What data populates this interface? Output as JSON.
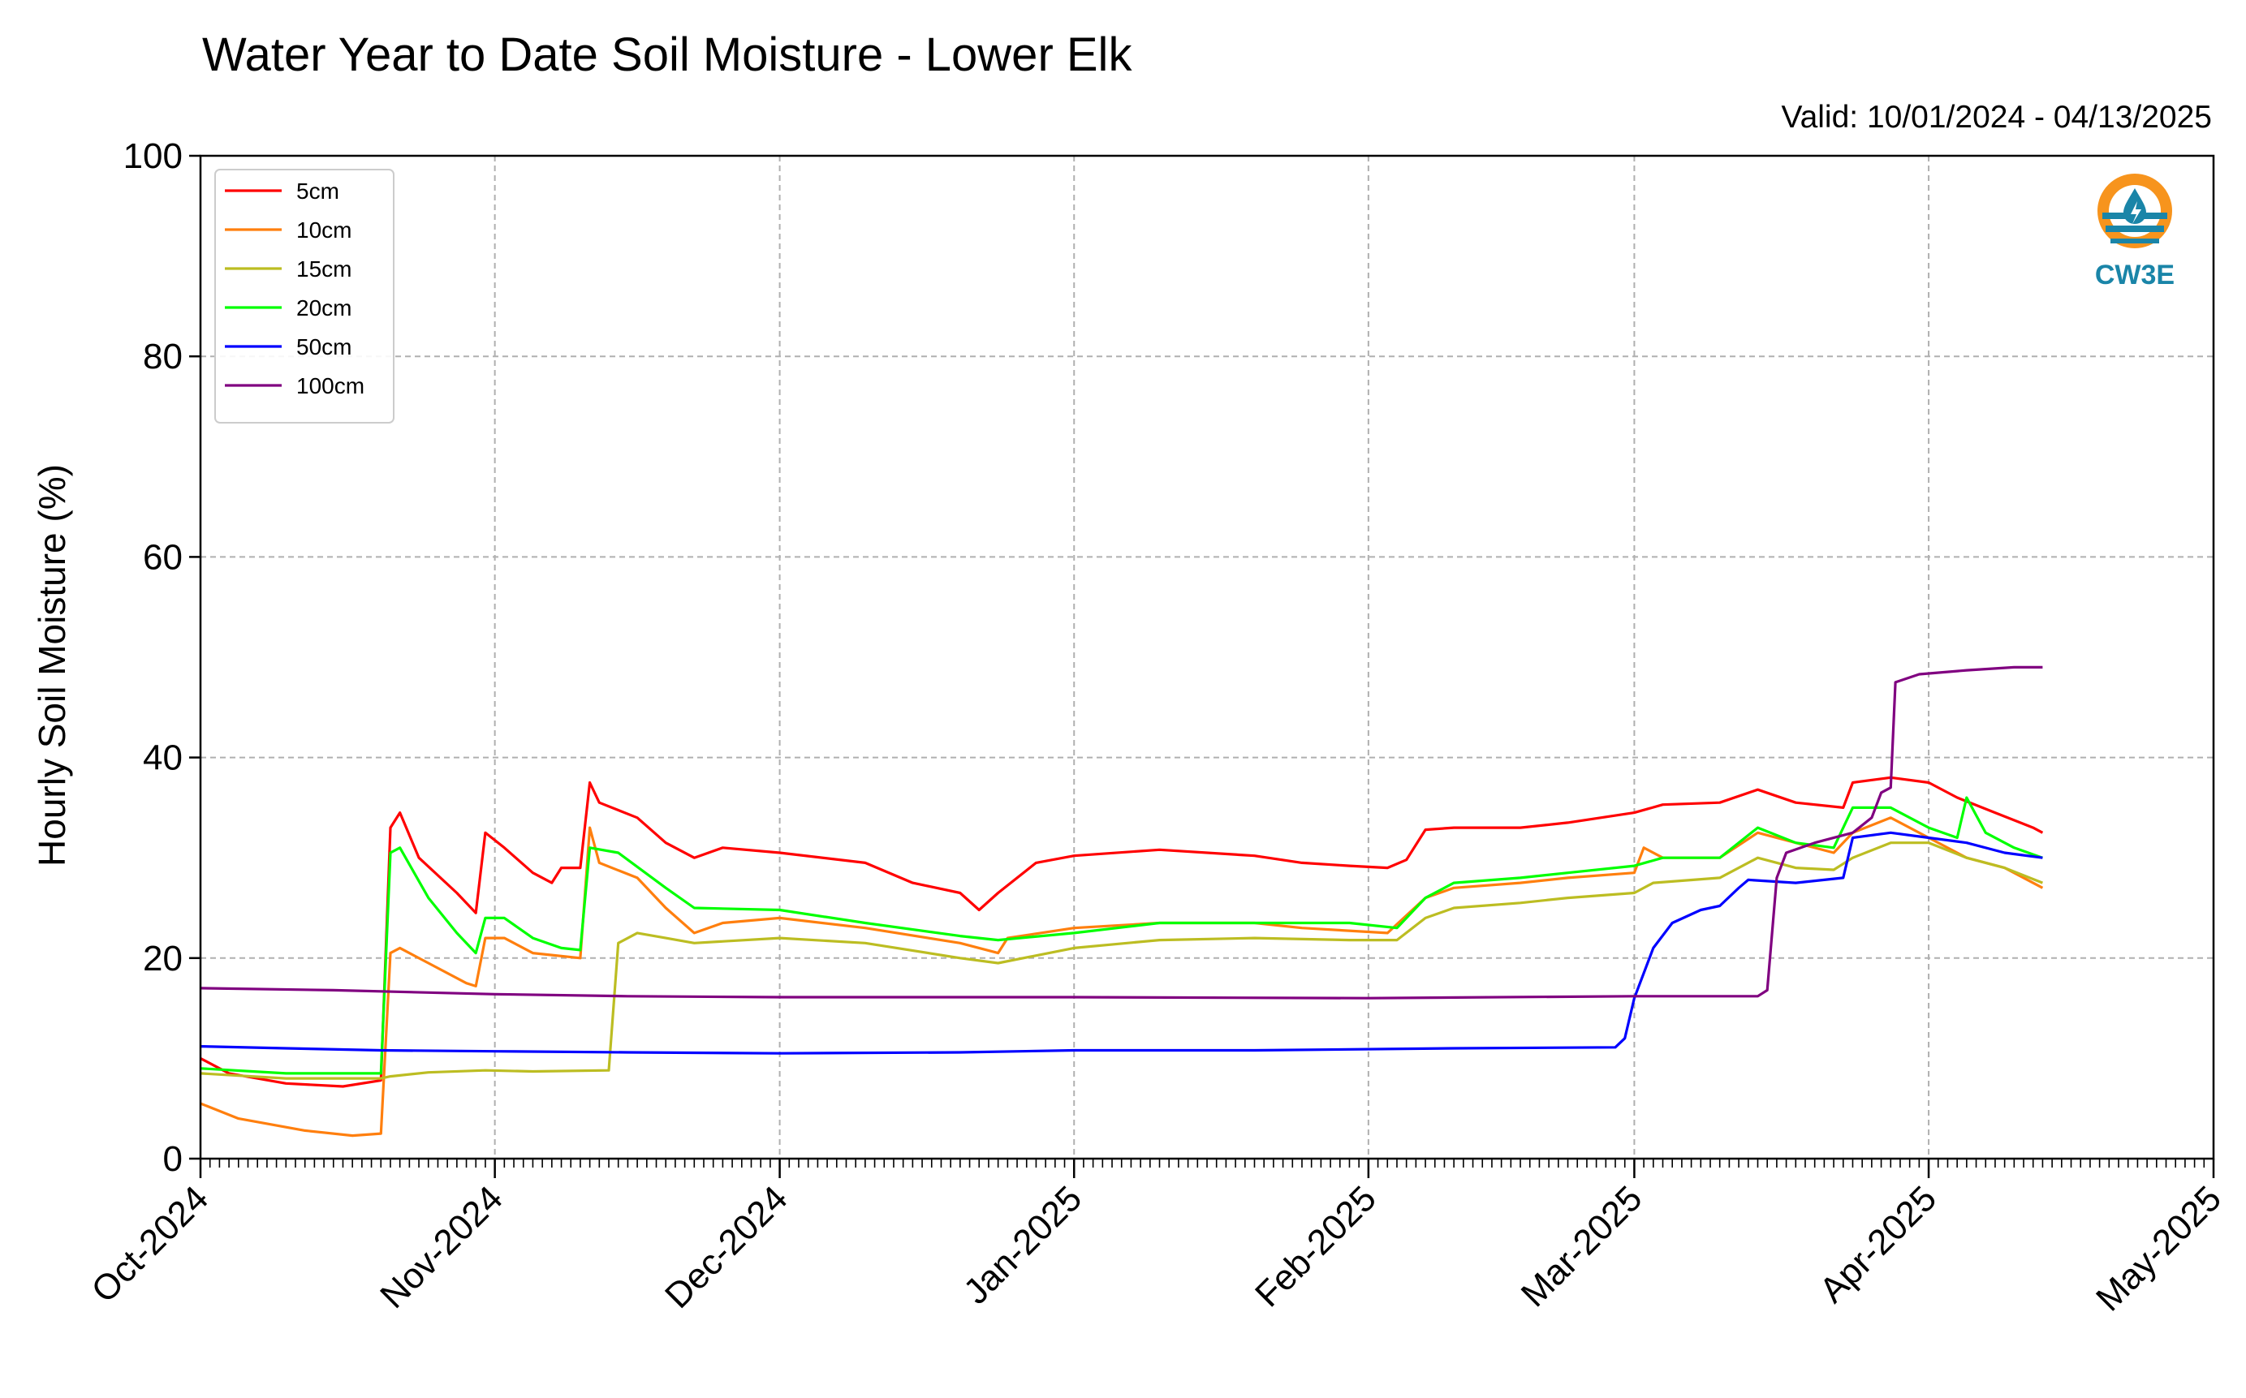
{
  "chart_data": {
    "type": "line",
    "title": "Water Year to Date Soil Moisture - Lower Elk",
    "subtitle": "Valid: 10/01/2024 - 04/13/2025",
    "xlabel": "",
    "ylabel": "Hourly Soil Moisture (%)",
    "ylim": [
      0,
      100
    ],
    "yticks": [
      "0",
      "20",
      "40",
      "60",
      "80",
      "100"
    ],
    "xlim": [
      "2024-10-01",
      "2025-05-01"
    ],
    "xticks": [
      {
        "date": "2024-10-01",
        "label": "Oct-2024"
      },
      {
        "date": "2024-11-01",
        "label": "Nov-2024"
      },
      {
        "date": "2024-12-01",
        "label": "Dec-2024"
      },
      {
        "date": "2025-01-01",
        "label": "Jan-2025"
      },
      {
        "date": "2025-02-01",
        "label": "Feb-2025"
      },
      {
        "date": "2025-03-01",
        "label": "Mar-2025"
      },
      {
        "date": "2025-04-01",
        "label": "Apr-2025"
      },
      {
        "date": "2025-05-01",
        "label": "May-2025"
      }
    ],
    "grid": true,
    "legend_position": "top-left",
    "logo_text": "CW3E",
    "series": [
      {
        "name": "5cm",
        "color": "#ff0000",
        "points": [
          [
            "2024-10-01",
            10.0
          ],
          [
            "2024-10-04",
            8.5
          ],
          [
            "2024-10-10",
            7.5
          ],
          [
            "2024-10-16",
            7.2
          ],
          [
            "2024-10-20",
            7.8
          ],
          [
            "2024-10-21",
            33.0
          ],
          [
            "2024-10-22",
            34.5
          ],
          [
            "2024-10-24",
            30.0
          ],
          [
            "2024-10-28",
            26.5
          ],
          [
            "2024-10-30",
            24.5
          ],
          [
            "2024-10-31",
            32.5
          ],
          [
            "2024-11-02",
            31.0
          ],
          [
            "2024-11-05",
            28.5
          ],
          [
            "2024-11-07",
            27.5
          ],
          [
            "2024-11-08",
            29.0
          ],
          [
            "2024-11-10",
            29.0
          ],
          [
            "2024-11-11",
            37.5
          ],
          [
            "2024-11-12",
            35.5
          ],
          [
            "2024-11-16",
            34.0
          ],
          [
            "2024-11-19",
            31.5
          ],
          [
            "2024-11-22",
            30.0
          ],
          [
            "2024-11-25",
            31.0
          ],
          [
            "2024-12-01",
            30.5
          ],
          [
            "2024-12-10",
            29.5
          ],
          [
            "2024-12-15",
            27.5
          ],
          [
            "2024-12-20",
            26.5
          ],
          [
            "2024-12-22",
            24.8
          ],
          [
            "2024-12-24",
            26.5
          ],
          [
            "2024-12-28",
            29.5
          ],
          [
            "2025-01-01",
            30.2
          ],
          [
            "2025-01-10",
            30.8
          ],
          [
            "2025-01-20",
            30.2
          ],
          [
            "2025-01-25",
            29.5
          ],
          [
            "2025-01-30",
            29.2
          ],
          [
            "2025-02-03",
            29.0
          ],
          [
            "2025-02-05",
            29.8
          ],
          [
            "2025-02-07",
            32.8
          ],
          [
            "2025-02-10",
            33.0
          ],
          [
            "2025-02-17",
            33.0
          ],
          [
            "2025-02-22",
            33.5
          ],
          [
            "2025-03-01",
            34.5
          ],
          [
            "2025-03-04",
            35.3
          ],
          [
            "2025-03-10",
            35.5
          ],
          [
            "2025-03-14",
            36.8
          ],
          [
            "2025-03-18",
            35.5
          ],
          [
            "2025-03-23",
            35.0
          ],
          [
            "2025-03-24",
            37.5
          ],
          [
            "2025-03-28",
            38.0
          ],
          [
            "2025-04-01",
            37.5
          ],
          [
            "2025-04-04",
            36.0
          ],
          [
            "2025-04-08",
            34.5
          ],
          [
            "2025-04-12",
            33.0
          ],
          [
            "2025-04-13",
            32.5
          ]
        ]
      },
      {
        "name": "10cm",
        "color": "#ff7f0e",
        "points": [
          [
            "2024-10-01",
            5.5
          ],
          [
            "2024-10-05",
            4.0
          ],
          [
            "2024-10-12",
            2.8
          ],
          [
            "2024-10-17",
            2.3
          ],
          [
            "2024-10-20",
            2.5
          ],
          [
            "2024-10-21",
            20.5
          ],
          [
            "2024-10-22",
            21.0
          ],
          [
            "2024-10-25",
            19.5
          ],
          [
            "2024-10-29",
            17.5
          ],
          [
            "2024-10-30",
            17.2
          ],
          [
            "2024-10-31",
            22.0
          ],
          [
            "2024-11-02",
            22.0
          ],
          [
            "2024-11-05",
            20.5
          ],
          [
            "2024-11-10",
            20.0
          ],
          [
            "2024-11-11",
            33.0
          ],
          [
            "2024-11-12",
            29.5
          ],
          [
            "2024-11-16",
            28.0
          ],
          [
            "2024-11-19",
            25.0
          ],
          [
            "2024-11-22",
            22.5
          ],
          [
            "2024-11-25",
            23.5
          ],
          [
            "2024-12-01",
            24.0
          ],
          [
            "2024-12-10",
            23.0
          ],
          [
            "2024-12-20",
            21.5
          ],
          [
            "2024-12-24",
            20.5
          ],
          [
            "2024-12-25",
            22.0
          ],
          [
            "2025-01-01",
            23.0
          ],
          [
            "2025-01-10",
            23.5
          ],
          [
            "2025-01-20",
            23.5
          ],
          [
            "2025-01-25",
            23.0
          ],
          [
            "2025-02-03",
            22.5
          ],
          [
            "2025-02-07",
            26.0
          ],
          [
            "2025-02-10",
            27.0
          ],
          [
            "2025-02-17",
            27.5
          ],
          [
            "2025-02-22",
            28.0
          ],
          [
            "2025-03-01",
            28.5
          ],
          [
            "2025-03-02",
            31.0
          ],
          [
            "2025-03-04",
            30.0
          ],
          [
            "2025-03-10",
            30.0
          ],
          [
            "2025-03-14",
            32.5
          ],
          [
            "2025-03-18",
            31.5
          ],
          [
            "2025-03-22",
            30.5
          ],
          [
            "2025-03-24",
            32.5
          ],
          [
            "2025-03-28",
            34.0
          ],
          [
            "2025-04-01",
            32.0
          ],
          [
            "2025-04-05",
            30.0
          ],
          [
            "2025-04-09",
            29.0
          ],
          [
            "2025-04-13",
            27.0
          ]
        ]
      },
      {
        "name": "15cm",
        "color": "#bcbd22",
        "points": [
          [
            "2024-10-01",
            8.5
          ],
          [
            "2024-10-10",
            8.0
          ],
          [
            "2024-10-20",
            8.0
          ],
          [
            "2024-10-21",
            8.2
          ],
          [
            "2024-10-25",
            8.6
          ],
          [
            "2024-10-31",
            8.8
          ],
          [
            "2024-11-05",
            8.7
          ],
          [
            "2024-11-13",
            8.8
          ],
          [
            "2024-11-14",
            21.5
          ],
          [
            "2024-11-16",
            22.5
          ],
          [
            "2024-11-19",
            22.0
          ],
          [
            "2024-11-22",
            21.5
          ],
          [
            "2024-12-01",
            22.0
          ],
          [
            "2024-12-10",
            21.5
          ],
          [
            "2024-12-20",
            20.0
          ],
          [
            "2024-12-24",
            19.5
          ],
          [
            "2025-01-01",
            21.0
          ],
          [
            "2025-01-10",
            21.8
          ],
          [
            "2025-01-20",
            22.0
          ],
          [
            "2025-01-30",
            21.8
          ],
          [
            "2025-02-04",
            21.8
          ],
          [
            "2025-02-07",
            24.0
          ],
          [
            "2025-02-10",
            25.0
          ],
          [
            "2025-02-17",
            25.5
          ],
          [
            "2025-02-22",
            26.0
          ],
          [
            "2025-03-01",
            26.5
          ],
          [
            "2025-03-03",
            27.5
          ],
          [
            "2025-03-10",
            28.0
          ],
          [
            "2025-03-14",
            30.0
          ],
          [
            "2025-03-18",
            29.0
          ],
          [
            "2025-03-22",
            28.8
          ],
          [
            "2025-03-24",
            30.0
          ],
          [
            "2025-03-28",
            31.5
          ],
          [
            "2025-04-01",
            31.5
          ],
          [
            "2025-04-05",
            30.0
          ],
          [
            "2025-04-09",
            29.0
          ],
          [
            "2025-04-13",
            27.5
          ]
        ]
      },
      {
        "name": "20cm",
        "color": "#00ff00",
        "points": [
          [
            "2024-10-01",
            9.0
          ],
          [
            "2024-10-10",
            8.5
          ],
          [
            "2024-10-20",
            8.5
          ],
          [
            "2024-10-21",
            30.5
          ],
          [
            "2024-10-22",
            31.0
          ],
          [
            "2024-10-25",
            26.0
          ],
          [
            "2024-10-28",
            22.5
          ],
          [
            "2024-10-30",
            20.5
          ],
          [
            "2024-10-31",
            24.0
          ],
          [
            "2024-11-02",
            24.0
          ],
          [
            "2024-11-05",
            22.0
          ],
          [
            "2024-11-08",
            21.0
          ],
          [
            "2024-11-10",
            20.8
          ],
          [
            "2024-11-11",
            31.0
          ],
          [
            "2024-11-14",
            30.5
          ],
          [
            "2024-11-19",
            27.0
          ],
          [
            "2024-11-22",
            25.0
          ],
          [
            "2024-12-01",
            24.8
          ],
          [
            "2024-12-10",
            23.5
          ],
          [
            "2024-12-20",
            22.2
          ],
          [
            "2024-12-24",
            21.8
          ],
          [
            "2025-01-01",
            22.5
          ],
          [
            "2025-01-10",
            23.5
          ],
          [
            "2025-01-20",
            23.5
          ],
          [
            "2025-01-30",
            23.5
          ],
          [
            "2025-02-04",
            23.0
          ],
          [
            "2025-02-07",
            26.0
          ],
          [
            "2025-02-10",
            27.5
          ],
          [
            "2025-02-17",
            28.0
          ],
          [
            "2025-02-22",
            28.5
          ],
          [
            "2025-03-01",
            29.2
          ],
          [
            "2025-03-04",
            30.0
          ],
          [
            "2025-03-10",
            30.0
          ],
          [
            "2025-03-14",
            33.0
          ],
          [
            "2025-03-18",
            31.5
          ],
          [
            "2025-03-22",
            31.0
          ],
          [
            "2025-03-24",
            35.0
          ],
          [
            "2025-03-28",
            35.0
          ],
          [
            "2025-04-01",
            33.0
          ],
          [
            "2025-04-04",
            32.0
          ],
          [
            "2025-04-05",
            36.0
          ],
          [
            "2025-04-07",
            32.5
          ],
          [
            "2025-04-10",
            31.0
          ],
          [
            "2025-04-13",
            30.0
          ]
        ]
      },
      {
        "name": "50cm",
        "color": "#0000ff",
        "points": [
          [
            "2024-10-01",
            11.2
          ],
          [
            "2024-10-10",
            11.0
          ],
          [
            "2024-10-20",
            10.8
          ],
          [
            "2024-11-01",
            10.7
          ],
          [
            "2024-11-15",
            10.6
          ],
          [
            "2024-12-01",
            10.5
          ],
          [
            "2024-12-20",
            10.6
          ],
          [
            "2025-01-01",
            10.8
          ],
          [
            "2025-01-20",
            10.8
          ],
          [
            "2025-02-10",
            11.0
          ],
          [
            "2025-02-27",
            11.1
          ],
          [
            "2025-02-28",
            12.0
          ],
          [
            "2025-03-01",
            16.0
          ],
          [
            "2025-03-03",
            21.0
          ],
          [
            "2025-03-05",
            23.5
          ],
          [
            "2025-03-08",
            24.8
          ],
          [
            "2025-03-10",
            25.2
          ],
          [
            "2025-03-12",
            27.0
          ],
          [
            "2025-03-13",
            27.8
          ],
          [
            "2025-03-18",
            27.5
          ],
          [
            "2025-03-23",
            28.0
          ],
          [
            "2025-03-24",
            32.0
          ],
          [
            "2025-03-28",
            32.5
          ],
          [
            "2025-04-01",
            32.0
          ],
          [
            "2025-04-05",
            31.5
          ],
          [
            "2025-04-09",
            30.5
          ],
          [
            "2025-04-13",
            30.0
          ]
        ]
      },
      {
        "name": "100cm",
        "color": "#800080",
        "points": [
          [
            "2024-10-01",
            17.0
          ],
          [
            "2024-10-15",
            16.8
          ],
          [
            "2024-11-01",
            16.4
          ],
          [
            "2024-11-15",
            16.2
          ],
          [
            "2024-12-01",
            16.1
          ],
          [
            "2025-01-01",
            16.1
          ],
          [
            "2025-02-01",
            16.0
          ],
          [
            "2025-03-01",
            16.2
          ],
          [
            "2025-03-14",
            16.2
          ],
          [
            "2025-03-15",
            16.8
          ],
          [
            "2025-03-16",
            28.0
          ],
          [
            "2025-03-17",
            30.5
          ],
          [
            "2025-03-20",
            31.5
          ],
          [
            "2025-03-24",
            32.5
          ],
          [
            "2025-03-26",
            34.0
          ],
          [
            "2025-03-27",
            36.5
          ],
          [
            "2025-03-28",
            37.0
          ],
          [
            "2025-03-28T12",
            47.5
          ],
          [
            "2025-03-31",
            48.3
          ],
          [
            "2025-04-05",
            48.7
          ],
          [
            "2025-04-10",
            49.0
          ],
          [
            "2025-04-13",
            49.0
          ]
        ]
      }
    ]
  }
}
